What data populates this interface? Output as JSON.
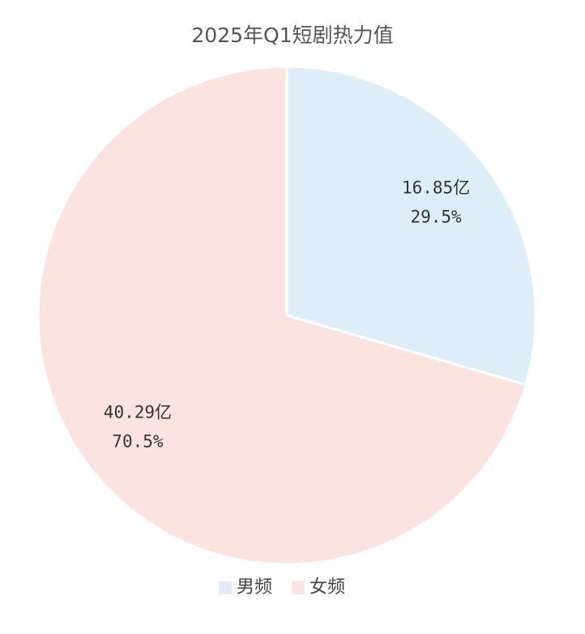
{
  "chart_data": {
    "type": "pie",
    "title": "2025年Q1短剧热力值",
    "categories": [
      "男频",
      "女频"
    ],
    "values": [
      16.85,
      40.29
    ],
    "value_labels": [
      "16.85亿",
      "40.29亿"
    ],
    "percents": [
      29.5,
      70.5
    ],
    "percent_labels": [
      "29.5%",
      "70.5%"
    ],
    "colors": [
      "#ddeef8",
      "#fbe3df"
    ],
    "legend": "bottom"
  }
}
